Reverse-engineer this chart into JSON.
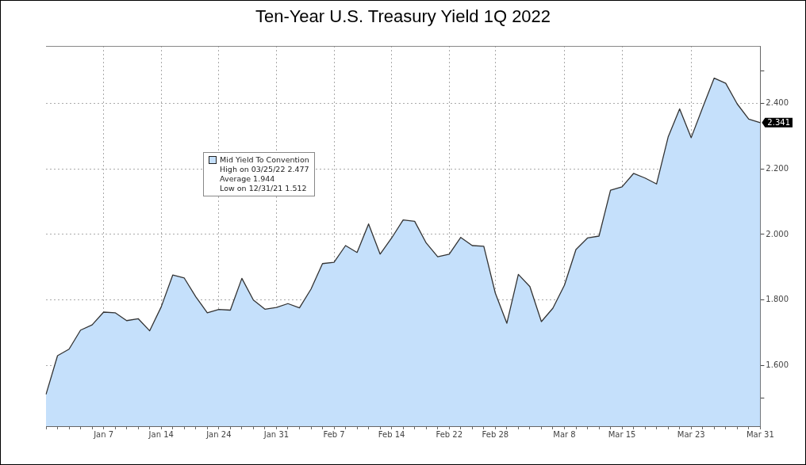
{
  "chart_data": {
    "type": "area",
    "title": "Ten-Year U.S. Treasury Yield 1Q 2022",
    "categories": [
      null,
      null,
      null,
      null,
      null,
      "Jan 7",
      null,
      null,
      null,
      null,
      "Jan 14",
      null,
      null,
      null,
      null,
      "Jan 24",
      null,
      null,
      null,
      null,
      "Jan 31",
      null,
      null,
      null,
      null,
      "Feb 7",
      null,
      null,
      null,
      null,
      "Feb 14",
      null,
      null,
      null,
      null,
      "Feb 22",
      null,
      null,
      null,
      "Feb 28",
      null,
      null,
      null,
      null,
      null,
      "Mar 8",
      null,
      null,
      null,
      null,
      "Mar 15",
      null,
      null,
      null,
      null,
      null,
      "Mar 23",
      null,
      null,
      null,
      null,
      null,
      "Mar 31"
    ],
    "series": [
      {
        "name": "Mid Yield To Convention",
        "color": "#c5e0fb",
        "values": [
          1.512,
          1.63,
          1.65,
          1.708,
          1.724,
          1.763,
          1.761,
          1.737,
          1.743,
          1.706,
          1.779,
          1.876,
          1.867,
          1.81,
          1.761,
          1.771,
          1.769,
          1.866,
          1.8,
          1.772,
          1.777,
          1.789,
          1.776,
          1.833,
          1.911,
          1.915,
          1.966,
          1.945,
          2.032,
          1.94,
          1.989,
          2.044,
          2.04,
          1.974,
          1.932,
          1.94,
          1.991,
          1.966,
          1.964,
          1.821,
          1.729,
          1.878,
          1.841,
          1.734,
          1.775,
          1.845,
          1.954,
          1.989,
          1.995,
          2.135,
          2.145,
          2.186,
          2.172,
          2.154,
          2.297,
          2.383,
          2.295,
          2.387,
          2.477,
          2.461,
          2.398,
          2.352,
          2.341
        ],
        "value_labels": [
          null,
          null,
          null,
          null,
          null,
          null,
          null,
          null,
          null,
          null,
          null,
          null,
          null,
          null,
          null,
          null,
          null,
          null,
          null,
          null,
          null,
          null,
          null,
          null,
          null,
          null,
          null,
          null,
          null,
          null,
          null,
          null,
          null,
          null,
          null,
          null,
          null,
          null,
          null,
          null,
          null,
          null,
          null,
          null,
          null,
          null,
          null,
          null,
          null,
          null,
          null,
          null,
          null,
          null,
          null,
          null,
          null,
          null,
          null,
          null,
          null,
          null,
          "2.341"
        ]
      }
    ],
    "ylim": [
      1.415,
      2.575
    ],
    "yticks": [
      {
        "value": 1.5,
        "label": null
      },
      {
        "value": 1.6,
        "label": "1.600"
      },
      {
        "value": 1.8,
        "label": "1.800"
      },
      {
        "value": 2.0,
        "label": "2.000"
      },
      {
        "value": 2.2,
        "label": "2.200"
      },
      {
        "value": 2.4,
        "label": "2.400"
      },
      {
        "value": 2.5,
        "label": null
      }
    ],
    "grid": true,
    "legend": "top left",
    "marker": "none",
    "annotations": [
      "High on 03/25/22 2.477",
      "Average 1.944",
      "Low on 12/31/21 1.512"
    ]
  }
}
